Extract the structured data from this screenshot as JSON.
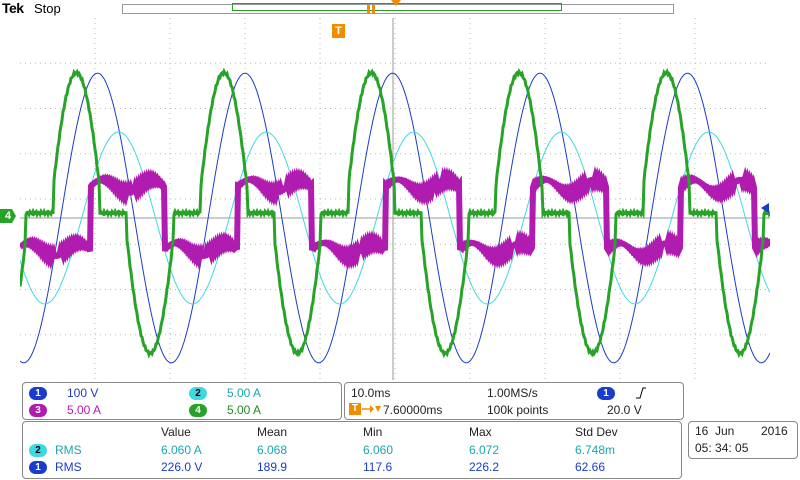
{
  "header": {
    "brand": "Tek",
    "run_state": "Stop"
  },
  "trigger_marker": "T",
  "ch4_marker": "4",
  "channels": {
    "ch1": {
      "num": "1",
      "scale": "100 V"
    },
    "ch2": {
      "num": "2",
      "scale": "5.00 A"
    },
    "ch3": {
      "num": "3",
      "scale": "5.00 A"
    },
    "ch4": {
      "num": "4",
      "scale": "5.00 A"
    }
  },
  "timebase": {
    "time_div": "10.0ms",
    "sample_rate": "1.00MS/s",
    "trigger_delay": "7.60000ms",
    "record_length": "100k points",
    "trigger_source": "1",
    "trigger_level": "20.0 V"
  },
  "measurements": {
    "headers": [
      "Value",
      "Mean",
      "Min",
      "Max",
      "Std Dev"
    ],
    "rows": [
      {
        "ch": "2",
        "type": "RMS",
        "value": "6.060 A",
        "mean": "6.068",
        "min": "6.060",
        "max": "6.072",
        "std": "6.748m"
      },
      {
        "ch": "1",
        "type": "RMS",
        "value": "226.0 V",
        "mean": "189.9",
        "min": "117.6",
        "max": "226.2",
        "std": "62.66"
      }
    ]
  },
  "datetime": {
    "date_day": "16",
    "date_month": "Jun",
    "date_year": "2016",
    "time": "05: 34: 05"
  },
  "colors": {
    "ch1": "#1a3cc8",
    "ch2": "#40d8e0",
    "ch3": "#b01cb0",
    "ch4": "#27a327",
    "trigger": "#f08c00"
  },
  "waveforms": {
    "frequency_hz": 50,
    "ch1_amplitude_div": 3.2,
    "ch2_amplitude_div": 1.9,
    "ch3_amplitude_div": 0.7,
    "ch4_amplitude_div": 3.1
  }
}
